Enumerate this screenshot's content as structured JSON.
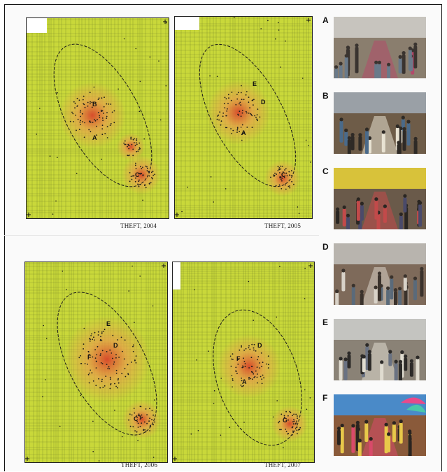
{
  "maps": [
    {
      "caption": "THEFT, 2004",
      "labels": [
        "A",
        "B",
        "C"
      ],
      "colors": {
        "base": "#c9d83a",
        "hot": "#d8452a",
        "warm": "#e7a14a",
        "grid": "#3f4f1f"
      }
    },
    {
      "caption": "THEFT, 2005",
      "labels": [
        "A",
        "C",
        "D",
        "E"
      ],
      "colors": {
        "base": "#c9d83a",
        "hot": "#d8452a",
        "warm": "#e7a14a",
        "grid": "#3f4f1f"
      }
    },
    {
      "caption": "THEFT, 2006",
      "labels": [
        "C",
        "D",
        "E",
        "F"
      ],
      "colors": {
        "base": "#c9d83a",
        "hot": "#d8452a",
        "warm": "#e7a14a",
        "grid": "#3f4f1f"
      }
    },
    {
      "caption": "THEFT, 2007",
      "labels": [
        "A",
        "C",
        "D",
        "F"
      ],
      "colors": {
        "base": "#c9d83a",
        "hot": "#d8452a",
        "warm": "#e7a14a",
        "grid": "#3f4f1f"
      }
    }
  ],
  "photos": [
    {
      "letter": "A",
      "scene": "elevated-walkway-crowd"
    },
    {
      "letter": "B",
      "scene": "street-market-with-taxi"
    },
    {
      "letter": "C",
      "scene": "crowded-shopping-street"
    },
    {
      "letter": "D",
      "scene": "narrow-street-with-jeepneys"
    },
    {
      "letter": "E",
      "scene": "covered-walkway-under-overpass"
    },
    {
      "letter": "F",
      "scene": "market-with-umbrellas"
    }
  ]
}
